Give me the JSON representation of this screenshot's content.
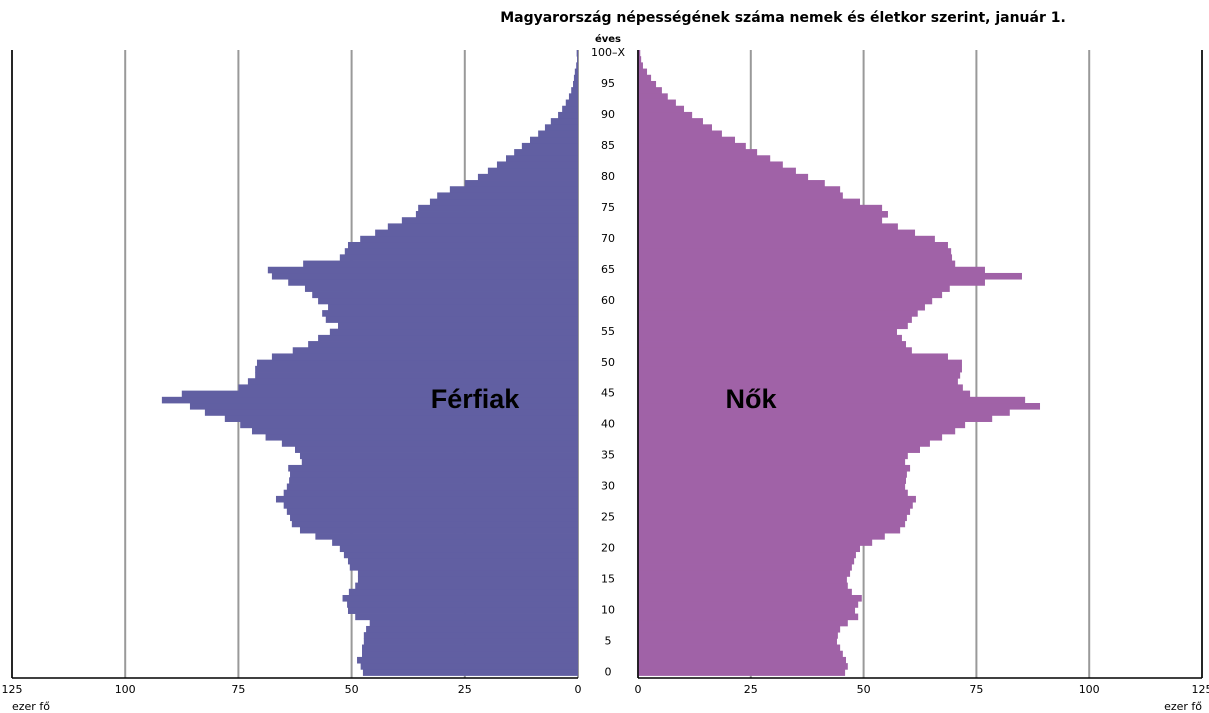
{
  "chart_data": {
    "type": "pyramid",
    "title": "Magyarország népességének száma nemek és életkor szerint, január 1.",
    "y_axis_label": "éves",
    "x_axis_label": "ezer fő",
    "categories": [
      "0",
      null,
      null,
      null,
      null,
      "5",
      null,
      null,
      null,
      null,
      "10",
      null,
      null,
      null,
      null,
      "15",
      null,
      null,
      null,
      null,
      "20",
      null,
      null,
      null,
      null,
      "25",
      null,
      null,
      null,
      null,
      "30",
      null,
      null,
      null,
      null,
      "35",
      null,
      null,
      null,
      null,
      "40",
      null,
      null,
      null,
      null,
      "45",
      null,
      null,
      null,
      null,
      "50",
      null,
      null,
      null,
      null,
      "55",
      null,
      null,
      null,
      null,
      "60",
      null,
      null,
      null,
      null,
      "65",
      null,
      null,
      null,
      null,
      "70",
      null,
      null,
      null,
      null,
      "75",
      null,
      null,
      null,
      null,
      "80",
      null,
      null,
      null,
      null,
      "85",
      null,
      null,
      null,
      null,
      "90",
      null,
      null,
      null,
      null,
      "95",
      null,
      null,
      null,
      null,
      "100–X"
    ],
    "series": [
      {
        "name": "Férfiak",
        "color": "#615fa2",
        "values": [
          47.5,
          48,
          48.8,
          47.7,
          47.7,
          47.3,
          47.3,
          46.8,
          46,
          49.2,
          50.8,
          51,
          52,
          50.6,
          49.2,
          48.6,
          48.6,
          50.4,
          50.8,
          51.7,
          52.6,
          54.3,
          58,
          61.4,
          63.2,
          63.6,
          64.3,
          65,
          66.7,
          65,
          64.3,
          63.8,
          63.6,
          64,
          61,
          61.4,
          62.5,
          65.4,
          69,
          72,
          74.6,
          78,
          82.4,
          85.7,
          91.9,
          87.5,
          75,
          72.9,
          71.3,
          71.3,
          70.9,
          67.6,
          63,
          59.6,
          57.4,
          54.8,
          53,
          55.7,
          56.5,
          55.2,
          57.4,
          58.7,
          60.3,
          64,
          67.6,
          68.5,
          60.7,
          52.6,
          51.5,
          50.8,
          48.1,
          44.8,
          42,
          38.9,
          35.8,
          35.3,
          32.7,
          31.1,
          28.3,
          25,
          22.1,
          19.9,
          17.9,
          15.9,
          14.1,
          12.4,
          10.6,
          8.8,
          7.3,
          6,
          4.4,
          3.5,
          2.7,
          2,
          1.5,
          1.1,
          0.9,
          0.7,
          0.4,
          0.2,
          0.3
        ]
      },
      {
        "name": "Nők",
        "color": "#a062a7",
        "values": [
          45.9,
          46.5,
          46.1,
          45.4,
          44.8,
          44.1,
          44.3,
          44.8,
          46.5,
          48.8,
          48.1,
          48.8,
          49.6,
          47.4,
          46.5,
          46.3,
          47,
          47.4,
          47.9,
          48.3,
          49.2,
          51.9,
          54.7,
          58.1,
          59.2,
          59.6,
          60.3,
          60.9,
          61.6,
          59.8,
          59.2,
          59.4,
          59.6,
          60.3,
          59.2,
          59.8,
          62.5,
          64.7,
          67.4,
          70.3,
          72.5,
          78.5,
          82.4,
          89.1,
          85.8,
          73.6,
          72,
          70.9,
          71.4,
          71.8,
          71.8,
          68.7,
          60.7,
          59.4,
          58.5,
          57.4,
          59.8,
          60.7,
          62,
          63.6,
          65.2,
          67.4,
          69.1,
          76.9,
          85.1,
          76.9,
          70.3,
          69.6,
          69.4,
          68.7,
          65.8,
          61.4,
          57.6,
          54.1,
          55.4,
          54.1,
          49.2,
          45.4,
          44.8,
          41.4,
          37.7,
          35,
          32.1,
          29.3,
          26.4,
          23.9,
          21.5,
          18.6,
          16.4,
          14.4,
          12,
          10.2,
          8.4,
          6.6,
          5.3,
          4,
          2.9,
          2,
          1.1,
          0.7,
          0.5
        ]
      }
    ],
    "xlim": [
      0,
      125
    ],
    "xticks": [
      0,
      25,
      50,
      75,
      100,
      125
    ],
    "grid": true
  }
}
